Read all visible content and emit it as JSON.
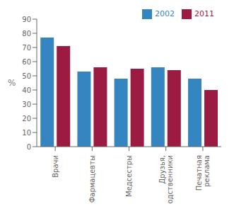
{
  "chart_data": {
    "type": "bar",
    "categories": [
      "Врачи",
      "Фармацевты",
      "Медсестры",
      "Друзья,\nродственники",
      "Печатная\nреклама"
    ],
    "series": [
      {
        "name": "2002",
        "color": "#3585c0",
        "values": [
          77,
          53,
          48,
          56,
          48
        ]
      },
      {
        "name": "2011",
        "color": "#9b1b42",
        "values": [
          71,
          56,
          55,
          54,
          40
        ]
      }
    ],
    "ylabel": "%",
    "ylim": [
      0,
      90
    ],
    "yticks": [
      0,
      10,
      20,
      30,
      40,
      50,
      60,
      70,
      80,
      90
    ],
    "grid": false,
    "legend": "upper right"
  }
}
